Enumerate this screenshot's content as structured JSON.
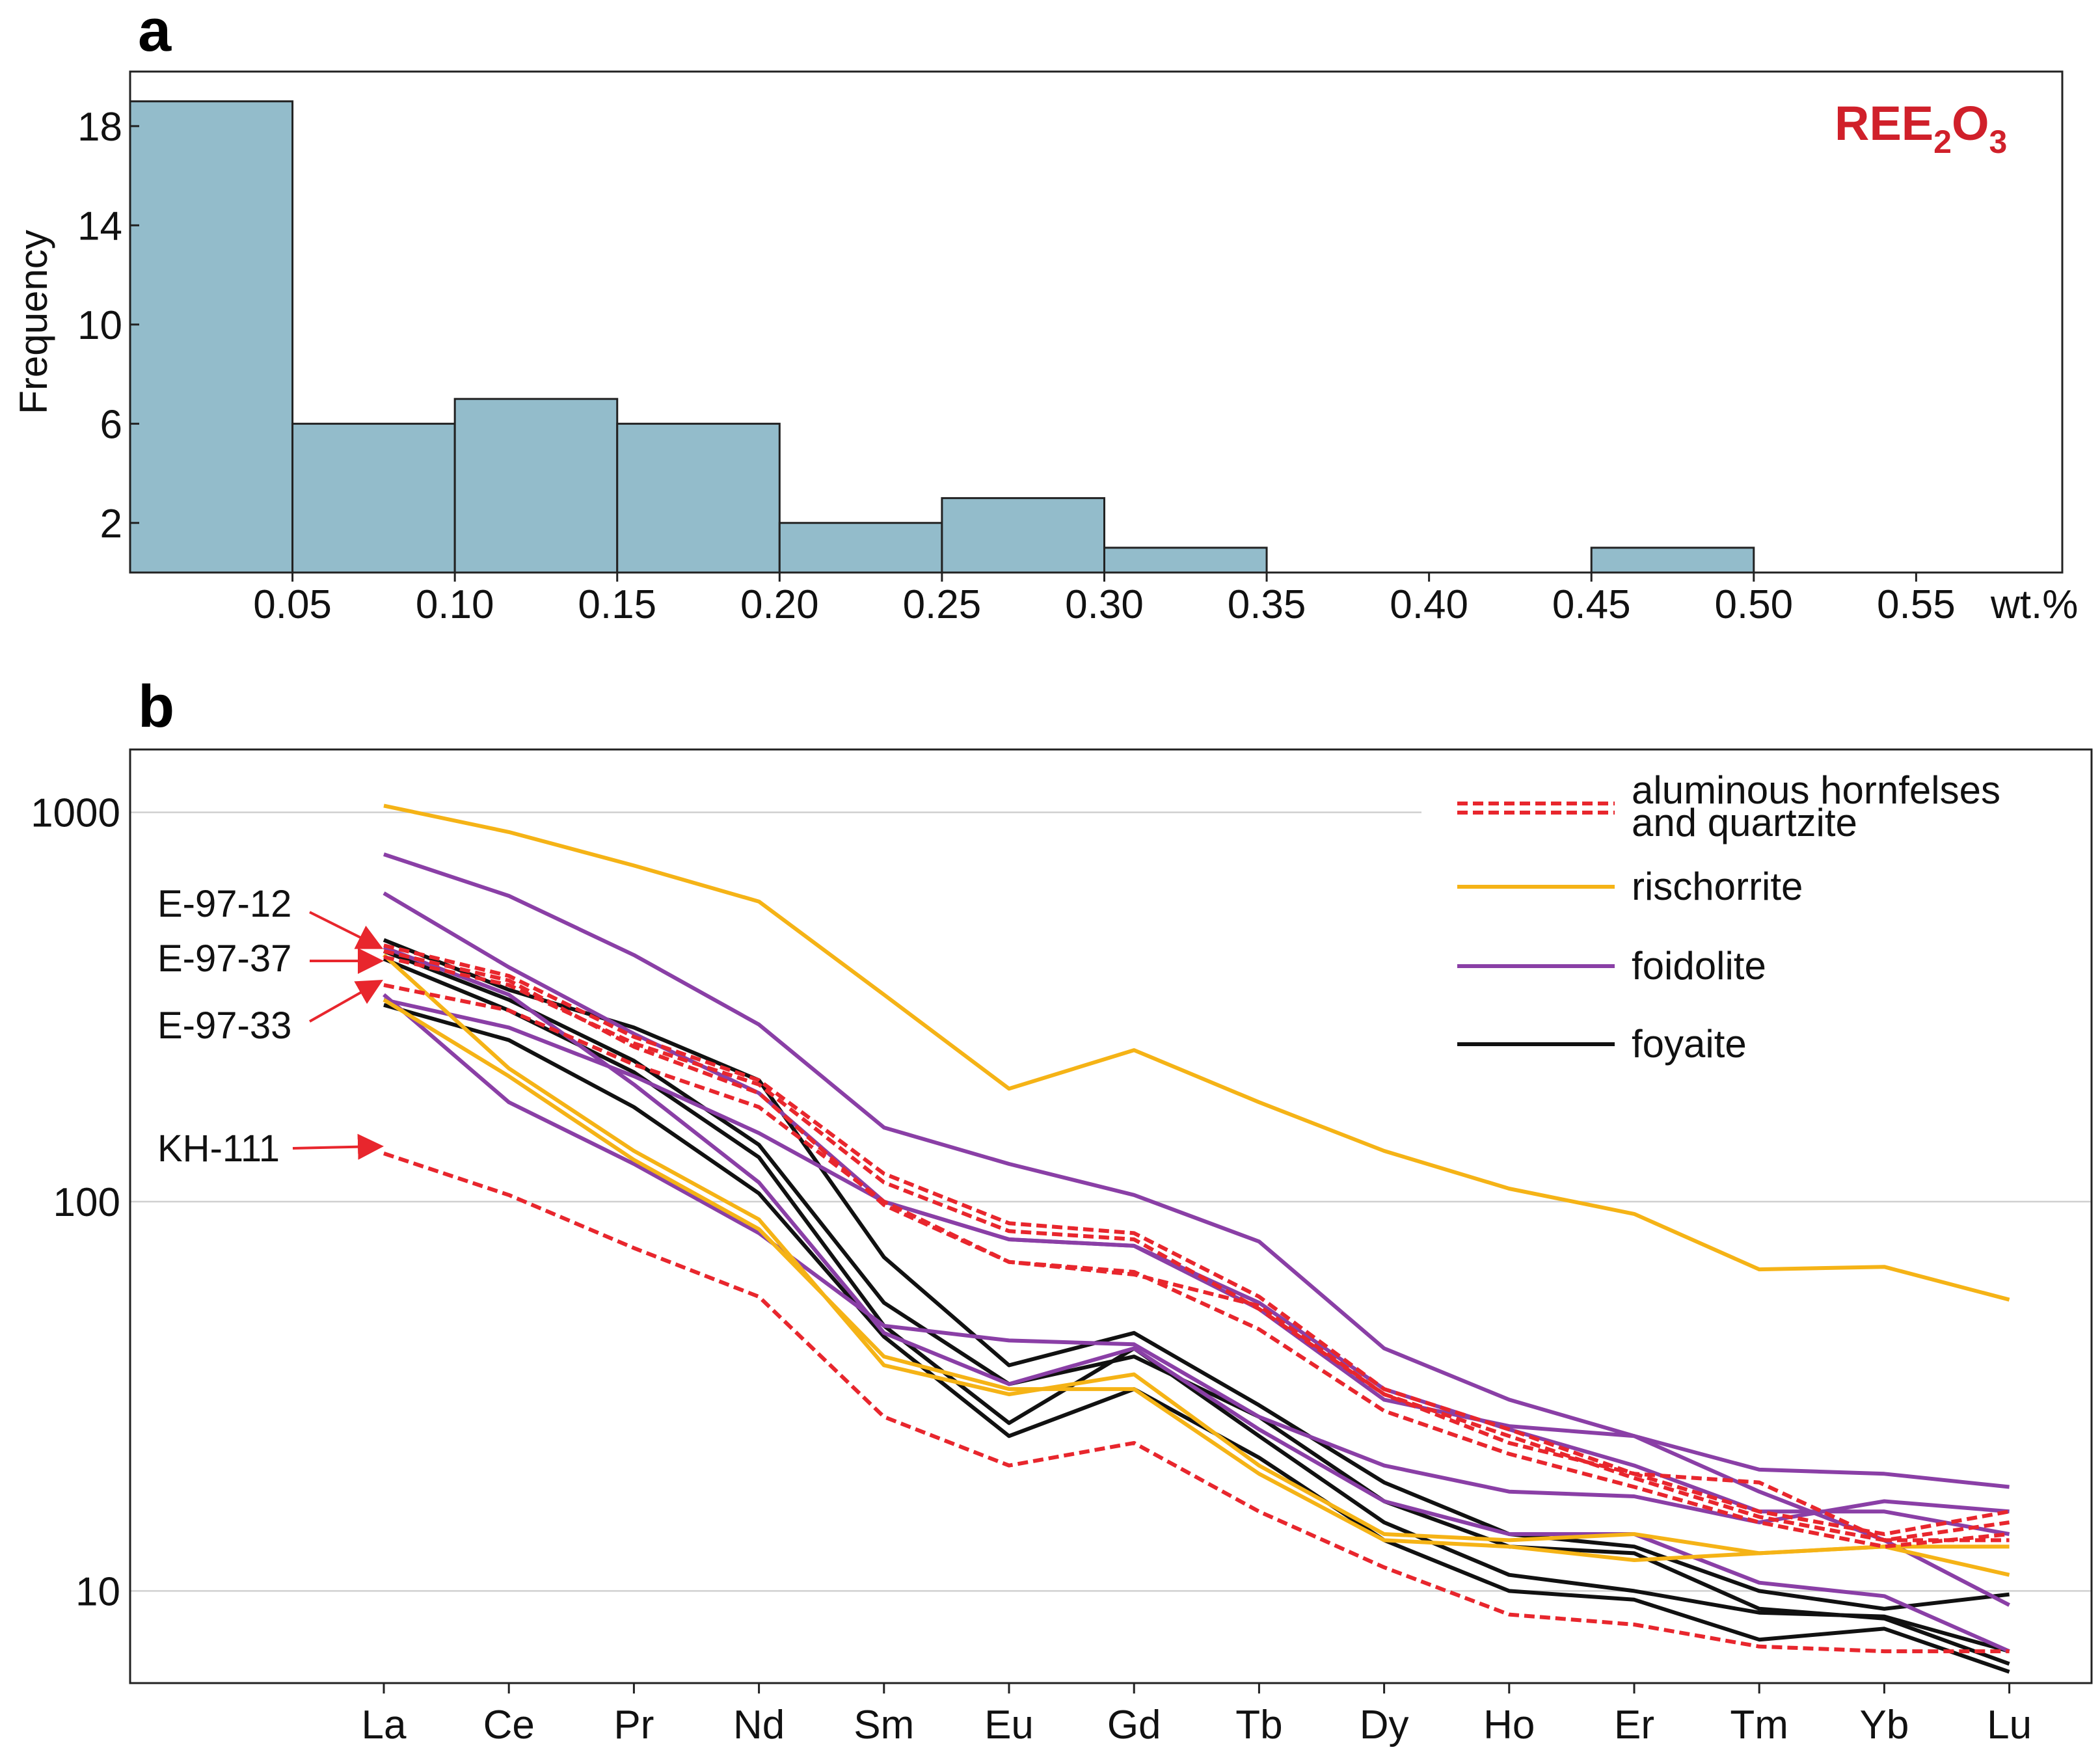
{
  "colors": {
    "bar_fill": "#93bccb",
    "hornfels": "#e8262d",
    "rischorrite": "#f5b316",
    "foidolite": "#8a3fa6",
    "foyaite": "#111111",
    "grid": "#d0d0d0",
    "arrow": "#e8262d"
  },
  "chart_data": [
    {
      "type": "bar",
      "panel_label": "a",
      "title": "REE",
      "title_sub1": "2",
      "title_mid": "O",
      "title_sub2": "3",
      "xlabel": "wt.%",
      "ylabel": "Frequency",
      "bins": [
        {
          "from": 0.0,
          "to": 0.05,
          "count": 19
        },
        {
          "from": 0.05,
          "to": 0.1,
          "count": 6
        },
        {
          "from": 0.1,
          "to": 0.15,
          "count": 7
        },
        {
          "from": 0.15,
          "to": 0.2,
          "count": 6
        },
        {
          "from": 0.2,
          "to": 0.25,
          "count": 2
        },
        {
          "from": 0.25,
          "to": 0.3,
          "count": 3
        },
        {
          "from": 0.3,
          "to": 0.35,
          "count": 1
        },
        {
          "from": 0.35,
          "to": 0.4,
          "count": 0
        },
        {
          "from": 0.4,
          "to": 0.45,
          "count": 0
        },
        {
          "from": 0.45,
          "to": 0.5,
          "count": 1
        },
        {
          "from": 0.5,
          "to": 0.55,
          "count": 0
        }
      ],
      "xticks": [
        "0.05",
        "0.10",
        "0.15",
        "0.20",
        "0.25",
        "0.30",
        "0.35",
        "0.40",
        "0.45",
        "0.50",
        "0.55"
      ],
      "yticks": [
        "2",
        "6",
        "10",
        "14",
        "18"
      ],
      "xlim": [
        0,
        0.595
      ],
      "ylim": [
        0,
        20.2
      ]
    },
    {
      "type": "line",
      "panel_label": "b",
      "yscale": "log",
      "ylim": [
        5.8,
        1450
      ],
      "yticks": [
        "10",
        "100",
        "1000"
      ],
      "categories": [
        "La",
        "Ce",
        "Pr",
        "Nd",
        "Sm",
        "Eu",
        "Gd",
        "Tb",
        "Dy",
        "Ho",
        "Er",
        "Tm",
        "Yb",
        "Lu"
      ],
      "legend": [
        {
          "label": "aluminous hornfelses",
          "label2": "and quartzite",
          "group": "hornfels"
        },
        {
          "label": "rischorrite",
          "group": "rischorrite"
        },
        {
          "label": "foidolite",
          "group": "foidolite"
        },
        {
          "label": "foyaite",
          "group": "foyaite"
        }
      ],
      "sample_labels": [
        {
          "name": "E-97-12",
          "target": 455
        },
        {
          "name": "E-97-37",
          "target": 425
        },
        {
          "name": "E-97-33",
          "target": 360
        },
        {
          "name": "KH-111",
          "target": 133
        }
      ],
      "series": [
        {
          "name": "E-97-12",
          "group": "hornfels",
          "values": [
            455,
            380,
            265,
            205,
            118,
            88,
            83,
            57,
            33,
            26,
            20,
            16,
            14,
            16
          ]
        },
        {
          "name": "E-97-37",
          "group": "hornfels",
          "values": [
            425,
            360,
            255,
            200,
            112,
            84,
            80,
            53,
            32,
            25,
            19.5,
            15.5,
            13.5,
            15
          ]
        },
        {
          "name": "E-97-33",
          "group": "hornfels",
          "values": [
            360,
            310,
            225,
            175,
            100,
            70,
            66,
            47,
            29,
            22.5,
            18.5,
            15,
            13,
            14
          ]
        },
        {
          "name": "hornfels-4",
          "group": "hornfels",
          "values": [
            440,
            370,
            250,
            190,
            98,
            70,
            65,
            54,
            32,
            24,
            20,
            19,
            13.5,
            13.5
          ]
        },
        {
          "name": "KH-111",
          "group": "hornfels",
          "values": [
            133,
            104,
            76,
            57,
            28,
            21,
            24,
            16,
            11.5,
            8.7,
            8.2,
            7.2,
            7,
            7
          ]
        },
        {
          "name": "rischorrite-1",
          "group": "rischorrite",
          "values": [
            1040,
            890,
            730,
            590,
            340,
            195,
            245,
            180,
            135,
            108,
            93,
            67,
            68,
            56
          ]
        },
        {
          "name": "rischorrite-2",
          "group": "rischorrite",
          "values": [
            430,
            220,
            135,
            90,
            38,
            32,
            36,
            21,
            14,
            13.5,
            14,
            12.5,
            13,
            11
          ]
        },
        {
          "name": "rischorrite-3",
          "group": "rischorrite",
          "values": [
            330,
            210,
            128,
            85,
            40,
            33,
            33,
            20,
            13.5,
            13,
            12,
            12.5,
            13,
            13
          ]
        },
        {
          "name": "foidolite-1",
          "group": "foidolite",
          "values": [
            780,
            610,
            430,
            285,
            155,
            125,
            104,
            79,
            42,
            31,
            25,
            20.5,
            20,
            18.5
          ]
        },
        {
          "name": "foidolite-2",
          "group": "foidolite",
          "values": [
            620,
            400,
            270,
            190,
            100,
            80,
            77,
            53,
            31,
            26.5,
            25,
            18,
            13.5,
            9.2
          ]
        },
        {
          "name": "foidolite-3",
          "group": "foidolite",
          "values": [
            330,
            280,
            210,
            150,
            100,
            80,
            77,
            55,
            33,
            26,
            21,
            16,
            16,
            14
          ]
        },
        {
          "name": "foidolite-4",
          "group": "foidolite",
          "values": [
            340,
            180,
            125,
            83,
            48,
            44,
            43,
            28,
            21,
            18,
            17.5,
            15,
            17,
            16
          ]
        },
        {
          "name": "foidolite-5",
          "group": "foidolite",
          "values": [
            450,
            340,
            200,
            112,
            46,
            34,
            42,
            26,
            17,
            14,
            14,
            10.5,
            9.7,
            7
          ]
        },
        {
          "name": "foyaite-1",
          "group": "foyaite",
          "values": [
            470,
            350,
            280,
            205,
            72,
            38,
            46,
            30,
            19,
            14,
            13,
            10,
            9,
            9.8
          ]
        },
        {
          "name": "foyaite-2",
          "group": "foyaite",
          "values": [
            440,
            330,
            230,
            140,
            55,
            34,
            40,
            28,
            17,
            13,
            12.5,
            9,
            8.5,
            6.5
          ]
        },
        {
          "name": "foyaite-3",
          "group": "foyaite",
          "values": [
            420,
            310,
            215,
            130,
            48,
            27,
            42,
            25,
            15,
            11,
            10,
            8.8,
            8.6,
            7
          ]
        },
        {
          "name": "foyaite-4",
          "group": "foyaite",
          "values": [
            320,
            260,
            175,
            105,
            45,
            25,
            33,
            22,
            13.5,
            10,
            9.5,
            7.5,
            8,
            6.2
          ]
        }
      ]
    }
  ]
}
